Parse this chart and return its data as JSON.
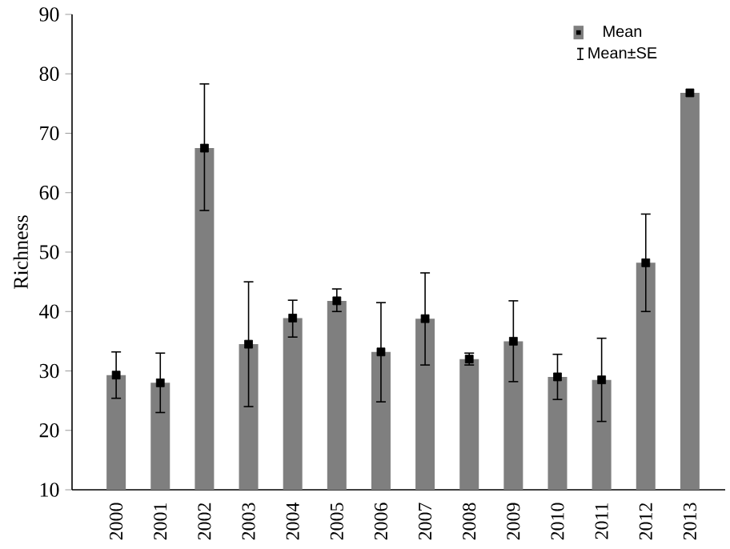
{
  "chart_data": {
    "type": "bar",
    "ylabel": "Richness",
    "categories": [
      "2000",
      "2001",
      "2002",
      "2003",
      "2004",
      "2005",
      "2006",
      "2007",
      "2008",
      "2009",
      "2010",
      "2011",
      "2012",
      "2013"
    ],
    "series": [
      {
        "name": "Mean",
        "color": "#7f7f7f",
        "values": [
          29.3,
          28,
          67.5,
          34.5,
          38.9,
          41.8,
          33.2,
          38.8,
          32,
          35,
          29,
          28.5,
          48.2,
          76.8
        ],
        "errors": [
          [
            25.4,
            33.2
          ],
          [
            23,
            33
          ],
          [
            57,
            78.3
          ],
          [
            24,
            45
          ],
          [
            35.7,
            41.9
          ],
          [
            40,
            43.8
          ],
          [
            24.8,
            41.5
          ],
          [
            31,
            46.5
          ],
          [
            31,
            33
          ],
          [
            28.2,
            41.8
          ],
          [
            25.2,
            32.8
          ],
          [
            21.5,
            35.5
          ],
          [
            40,
            56.4
          ],
          null
        ]
      },
      {
        "type": "scatter",
        "color": "#000000",
        "values": [
          29.3,
          28,
          67.5,
          34.5,
          38.9,
          41.8,
          33.2,
          38.8,
          32,
          35,
          29,
          28.5,
          48.2,
          76.8
        ]
      }
    ],
    "annotations": [
      "Mean±SE"
    ],
    "ylim": [
      10,
      90
    ],
    "yticks": [
      10,
      20,
      30,
      40,
      50,
      60,
      70,
      80,
      90
    ],
    "marker": "square",
    "legend": "top right",
    "grid": false
  }
}
